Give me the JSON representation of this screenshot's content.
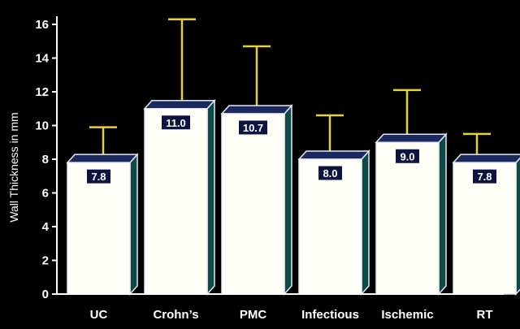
{
  "colors": {
    "background": "#000000",
    "bar_front": "#fffff8",
    "bar_top": "#1b2a5e",
    "bar_side": "#0b4a46",
    "bar_outline": "#e8e8f0",
    "error_bar": "#e8d23a",
    "axis": "#ffffff",
    "label_box": "#0d1440"
  },
  "chart_data": {
    "type": "bar",
    "title": "",
    "xlabel": "",
    "ylabel": "Wall Thickness in mm",
    "ylim": [
      0,
      16
    ],
    "yticks": [
      "0",
      "2",
      "4",
      "6",
      "8",
      "10",
      "12",
      "14",
      "16"
    ],
    "grid": false,
    "categories": [
      "UC",
      "Crohn’s",
      "PMC",
      "Infectious",
      "Ischemic",
      "RT"
    ],
    "values": [
      7.8,
      11.0,
      10.7,
      8.0,
      9.0,
      7.8
    ],
    "value_labels": [
      "7.8",
      "11.0",
      "10.7",
      "8.0",
      "9.0",
      "7.8"
    ],
    "error_upper": [
      9.9,
      16.3,
      14.7,
      10.6,
      12.1,
      9.5
    ]
  }
}
